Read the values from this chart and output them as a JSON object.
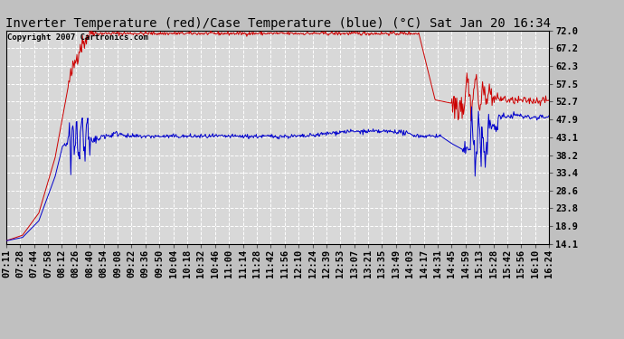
{
  "title": "Inverter Temperature (red)/Case Temperature (blue) (°C) Sat Jan 20 16:34",
  "copyright": "Copyright 2007 Cartronics.com",
  "bg_color": "#c0c0c0",
  "plot_bg_color": "#d8d8d8",
  "grid_color": "#ffffff",
  "red_color": "#cc0000",
  "blue_color": "#0000cc",
  "yticks": [
    14.1,
    18.9,
    23.8,
    28.6,
    33.4,
    38.2,
    43.1,
    47.9,
    52.7,
    57.5,
    62.3,
    67.2,
    72.0
  ],
  "xtick_labels": [
    "07:11",
    "07:28",
    "07:44",
    "07:58",
    "08:12",
    "08:26",
    "08:40",
    "08:54",
    "09:08",
    "09:22",
    "09:36",
    "09:50",
    "10:04",
    "10:18",
    "10:32",
    "10:46",
    "11:00",
    "11:14",
    "11:28",
    "11:42",
    "11:56",
    "12:10",
    "12:24",
    "12:39",
    "12:53",
    "13:07",
    "13:21",
    "13:35",
    "13:49",
    "14:03",
    "14:17",
    "14:31",
    "14:45",
    "14:59",
    "15:13",
    "15:28",
    "15:42",
    "15:56",
    "16:10",
    "16:24"
  ],
  "ymin": 14.1,
  "ymax": 72.0,
  "title_fontsize": 10,
  "copyright_fontsize": 6.5,
  "tick_fontsize": 7.5
}
